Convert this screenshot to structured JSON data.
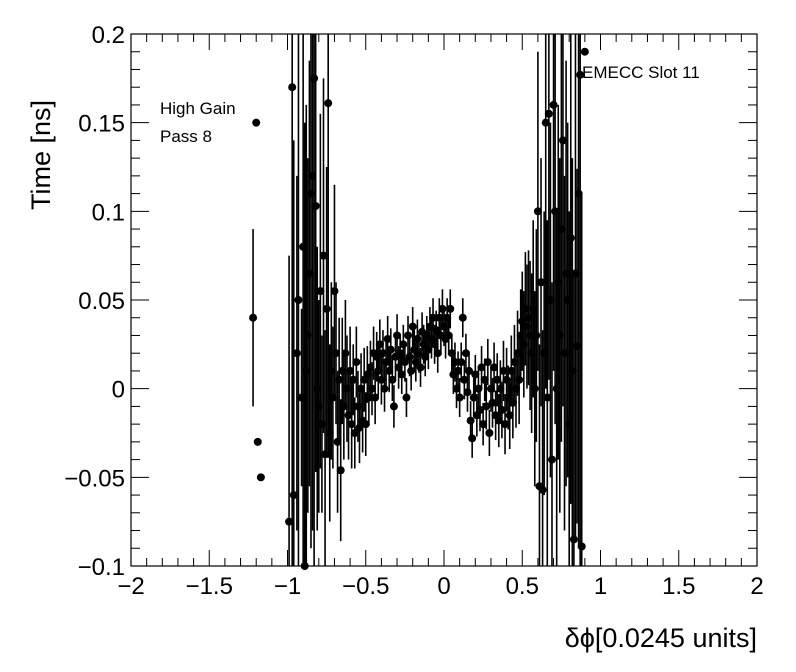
{
  "chart_data": {
    "type": "scatter",
    "xlabel": "δϕ[0.0245 units]",
    "ylabel": "Time [ns]",
    "xlim": [
      -2,
      2
    ],
    "ylim": [
      -0.1,
      0.2
    ],
    "x_ticks": [
      -2,
      -1.5,
      -1,
      -0.5,
      0,
      0.5,
      1,
      1.5,
      2
    ],
    "x_tick_labels": [
      "−2",
      "−1.5",
      "−1",
      "−0.5",
      "0",
      "0.5",
      "1",
      "1.5",
      "2"
    ],
    "y_ticks": [
      -0.1,
      -0.05,
      0,
      0.05,
      0.1,
      0.15,
      0.2
    ],
    "y_tick_labels": [
      "−0.1",
      "−0.05",
      "0",
      "0.05",
      "0.1",
      "0.15",
      "0.2"
    ],
    "annotations": [
      "High Gain",
      "Pass 8",
      "EMECC Slot 11"
    ],
    "marker_color": "#000000",
    "grid": false,
    "points": [
      [
        -1.22,
        0.04,
        0.05
      ],
      [
        -1.2,
        0.15,
        0.0
      ],
      [
        -1.19,
        -0.03,
        0.0
      ],
      [
        -1.17,
        -0.05,
        0.0
      ],
      [
        -0.99,
        -0.075,
        0.15
      ],
      [
        -0.97,
        0.17,
        0.3
      ],
      [
        -0.96,
        -0.06,
        0.2
      ],
      [
        -0.94,
        0.02,
        0.1
      ],
      [
        -0.93,
        0.05,
        0.15
      ],
      [
        -0.91,
        -0.005,
        0.05
      ],
      [
        -0.9,
        0.08,
        0.2
      ],
      [
        -0.89,
        -0.1,
        0.25
      ],
      [
        -0.88,
        0.01,
        0.15
      ],
      [
        -0.87,
        0.03,
        0.1
      ],
      [
        -0.86,
        0.065,
        0.12
      ],
      [
        -0.85,
        0.11,
        0.2
      ],
      [
        -0.84,
        0.12,
        0.2
      ],
      [
        -0.83,
        0.175,
        0.3
      ],
      [
        -0.82,
        0.103,
        0.15
      ],
      [
        -0.81,
        0.0,
        0.08
      ],
      [
        -0.8,
        -0.01,
        0.06
      ],
      [
        -0.79,
        0.055,
        0.1
      ],
      [
        -0.78,
        -0.02,
        0.05
      ],
      [
        -0.77,
        0.075,
        0.1
      ],
      [
        -0.76,
        -0.037,
        0.07
      ],
      [
        -0.75,
        0.045,
        0.08
      ],
      [
        -0.74,
        0.161,
        0.2
      ],
      [
        -0.73,
        -0.025,
        0.05
      ],
      [
        -0.72,
        0.01,
        0.05
      ],
      [
        -0.71,
        -0.005,
        0.04
      ],
      [
        -0.7,
        0.055,
        0.06
      ],
      [
        -0.69,
        0.02,
        0.04
      ],
      [
        -0.68,
        -0.03,
        0.04
      ],
      [
        -0.67,
        0.005,
        0.035
      ],
      [
        -0.66,
        -0.046,
        0.04
      ],
      [
        -0.65,
        0.01,
        0.03
      ],
      [
        -0.64,
        -0.01,
        0.03
      ],
      [
        -0.63,
        0.02,
        0.03
      ],
      [
        -0.62,
        0.0,
        0.03
      ],
      [
        -0.61,
        -0.015,
        0.025
      ],
      [
        -0.6,
        0.01,
        0.025
      ],
      [
        -0.59,
        -0.02,
        0.025
      ],
      [
        -0.58,
        0.005,
        0.02
      ],
      [
        -0.57,
        -0.025,
        0.02
      ],
      [
        -0.56,
        0.015,
        0.02
      ],
      [
        -0.55,
        -0.01,
        0.02
      ],
      [
        -0.54,
        -0.022,
        0.02
      ],
      [
        -0.53,
        0.0,
        0.02
      ],
      [
        -0.52,
        -0.018,
        0.018
      ],
      [
        -0.51,
        0.005,
        0.018
      ],
      [
        -0.5,
        -0.02,
        0.018
      ],
      [
        -0.49,
        0.008,
        0.016
      ],
      [
        -0.48,
        -0.005,
        0.016
      ],
      [
        -0.47,
        0.012,
        0.015
      ],
      [
        -0.46,
        0.0,
        0.015
      ],
      [
        -0.45,
        0.02,
        0.015
      ],
      [
        -0.44,
        -0.005,
        0.015
      ],
      [
        -0.43,
        0.018,
        0.014
      ],
      [
        -0.42,
        0.01,
        0.014
      ],
      [
        -0.41,
        0.025,
        0.014
      ],
      [
        -0.4,
        0.005,
        0.014
      ],
      [
        -0.39,
        0.02,
        0.013
      ],
      [
        -0.38,
        0.0,
        0.013
      ],
      [
        -0.37,
        0.015,
        0.013
      ],
      [
        -0.36,
        0.028,
        0.013
      ],
      [
        -0.35,
        0.01,
        0.012
      ],
      [
        -0.34,
        0.022,
        0.012
      ],
      [
        -0.33,
        0.005,
        0.012
      ],
      [
        -0.32,
        -0.01,
        0.012
      ],
      [
        -0.31,
        0.018,
        0.012
      ],
      [
        -0.3,
        0.03,
        0.012
      ],
      [
        -0.29,
        0.012,
        0.012
      ],
      [
        -0.28,
        0.02,
        0.011
      ],
      [
        -0.27,
        0.008,
        0.011
      ],
      [
        -0.26,
        0.025,
        0.011
      ],
      [
        -0.25,
        0.015,
        0.011
      ],
      [
        -0.24,
        -0.005,
        0.011
      ],
      [
        -0.23,
        0.03,
        0.011
      ],
      [
        -0.22,
        0.018,
        0.011
      ],
      [
        -0.21,
        0.01,
        0.011
      ],
      [
        -0.2,
        0.035,
        0.011
      ],
      [
        -0.19,
        0.022,
        0.011
      ],
      [
        -0.18,
        0.015,
        0.011
      ],
      [
        -0.17,
        0.028,
        0.011
      ],
      [
        -0.16,
        0.02,
        0.011
      ],
      [
        -0.15,
        0.012,
        0.011
      ],
      [
        -0.14,
        0.032,
        0.011
      ],
      [
        -0.13,
        0.025,
        0.011
      ],
      [
        -0.12,
        0.018,
        0.011
      ],
      [
        -0.11,
        0.03,
        0.011
      ],
      [
        -0.1,
        0.022,
        0.011
      ],
      [
        -0.09,
        0.035,
        0.011
      ],
      [
        -0.08,
        0.028,
        0.011
      ],
      [
        -0.07,
        0.04,
        0.011
      ],
      [
        -0.06,
        0.025,
        0.011
      ],
      [
        -0.05,
        0.033,
        0.011
      ],
      [
        -0.04,
        0.02,
        0.011
      ],
      [
        -0.03,
        0.04,
        0.011
      ],
      [
        -0.02,
        0.03,
        0.011
      ],
      [
        -0.01,
        0.045,
        0.011
      ],
      [
        0.0,
        0.035,
        0.011
      ],
      [
        0.01,
        0.028,
        0.011
      ],
      [
        0.02,
        0.04,
        0.011
      ],
      [
        0.03,
        0.03,
        0.011
      ],
      [
        0.04,
        0.045,
        0.011
      ],
      [
        0.05,
        0.02,
        0.011
      ],
      [
        0.06,
        0.008,
        0.011
      ],
      [
        0.07,
        0.015,
        0.011
      ],
      [
        0.08,
        0.0,
        0.011
      ],
      [
        0.09,
        0.01,
        0.011
      ],
      [
        0.1,
        -0.005,
        0.011
      ],
      [
        0.11,
        0.015,
        0.011
      ],
      [
        0.12,
        0.04,
        0.011
      ],
      [
        0.13,
        0.005,
        0.011
      ],
      [
        0.14,
        0.02,
        0.011
      ],
      [
        0.15,
        -0.002,
        0.011
      ],
      [
        0.16,
        0.01,
        0.011
      ],
      [
        0.17,
        -0.018,
        0.011
      ],
      [
        0.18,
        -0.028,
        0.011
      ],
      [
        0.19,
        -0.005,
        0.011
      ],
      [
        0.2,
        0.008,
        0.011
      ],
      [
        0.21,
        -0.015,
        0.012
      ],
      [
        0.22,
        0.0,
        0.012
      ],
      [
        0.23,
        -0.012,
        0.012
      ],
      [
        0.24,
        0.012,
        0.012
      ],
      [
        0.25,
        -0.02,
        0.012
      ],
      [
        0.26,
        0.005,
        0.012
      ],
      [
        0.27,
        -0.01,
        0.013
      ],
      [
        0.28,
        0.015,
        0.013
      ],
      [
        0.29,
        -0.025,
        0.013
      ],
      [
        0.3,
        0.0,
        0.013
      ],
      [
        0.31,
        -0.008,
        0.014
      ],
      [
        0.32,
        0.012,
        0.014
      ],
      [
        0.33,
        -0.015,
        0.014
      ],
      [
        0.34,
        0.005,
        0.015
      ],
      [
        0.35,
        -0.018,
        0.015
      ],
      [
        0.36,
        0.0,
        0.016
      ],
      [
        0.37,
        -0.012,
        0.016
      ],
      [
        0.38,
        0.01,
        0.017
      ],
      [
        0.39,
        -0.02,
        0.017
      ],
      [
        0.4,
        0.005,
        0.018
      ],
      [
        0.41,
        -0.005,
        0.018
      ],
      [
        0.42,
        -0.015,
        0.019
      ],
      [
        0.43,
        0.01,
        0.02
      ],
      [
        0.44,
        -0.008,
        0.02
      ],
      [
        0.45,
        0.015,
        0.021
      ],
      [
        0.46,
        0.0,
        0.022
      ],
      [
        0.47,
        0.02,
        0.024
      ],
      [
        0.48,
        0.005,
        0.025
      ],
      [
        0.49,
        0.03,
        0.026
      ],
      [
        0.5,
        0.038,
        0.028
      ],
      [
        0.51,
        0.025,
        0.03
      ],
      [
        0.52,
        0.045,
        0.032
      ],
      [
        0.53,
        0.035,
        0.035
      ],
      [
        0.54,
        0.04,
        0.038
      ],
      [
        0.55,
        0.03,
        0.042
      ],
      [
        0.56,
        0.02,
        0.045
      ],
      [
        0.57,
        0.045,
        0.05
      ],
      [
        0.58,
        0.0,
        0.055
      ],
      [
        0.59,
        0.03,
        0.06
      ],
      [
        0.6,
        0.1,
        0.09
      ],
      [
        0.61,
        -0.055,
        0.08
      ],
      [
        0.62,
        0.06,
        0.07
      ],
      [
        0.63,
        -0.057,
        0.09
      ],
      [
        0.64,
        0.02,
        0.08
      ],
      [
        0.65,
        0.15,
        0.15
      ],
      [
        0.66,
        -0.005,
        0.1
      ],
      [
        0.67,
        0.155,
        0.15
      ],
      [
        0.68,
        0.05,
        0.1
      ],
      [
        0.69,
        -0.04,
        0.1
      ],
      [
        0.7,
        0.16,
        0.15
      ],
      [
        0.71,
        0.1,
        0.12
      ],
      [
        0.72,
        0.0,
        0.1
      ],
      [
        0.73,
        0.06,
        0.1
      ],
      [
        0.74,
        0.03,
        0.1
      ],
      [
        0.75,
        0.09,
        0.12
      ],
      [
        0.76,
        0.14,
        0.15
      ],
      [
        0.77,
        0.02,
        0.1
      ],
      [
        0.78,
        0.065,
        0.12
      ],
      [
        0.79,
        0.05,
        0.1
      ],
      [
        0.8,
        -0.02,
        0.12
      ],
      [
        0.81,
        0.085,
        0.15
      ],
      [
        0.82,
        0.01,
        0.12
      ],
      [
        0.83,
        -0.085,
        0.15
      ],
      [
        0.84,
        0.065,
        0.15
      ],
      [
        0.85,
        0.024,
        0.1
      ],
      [
        0.86,
        0.11,
        0.2
      ],
      [
        0.87,
        0.177,
        0.3
      ],
      [
        0.88,
        -0.089,
        0.2
      ],
      [
        0.9,
        0.19,
        0.0
      ]
    ]
  }
}
